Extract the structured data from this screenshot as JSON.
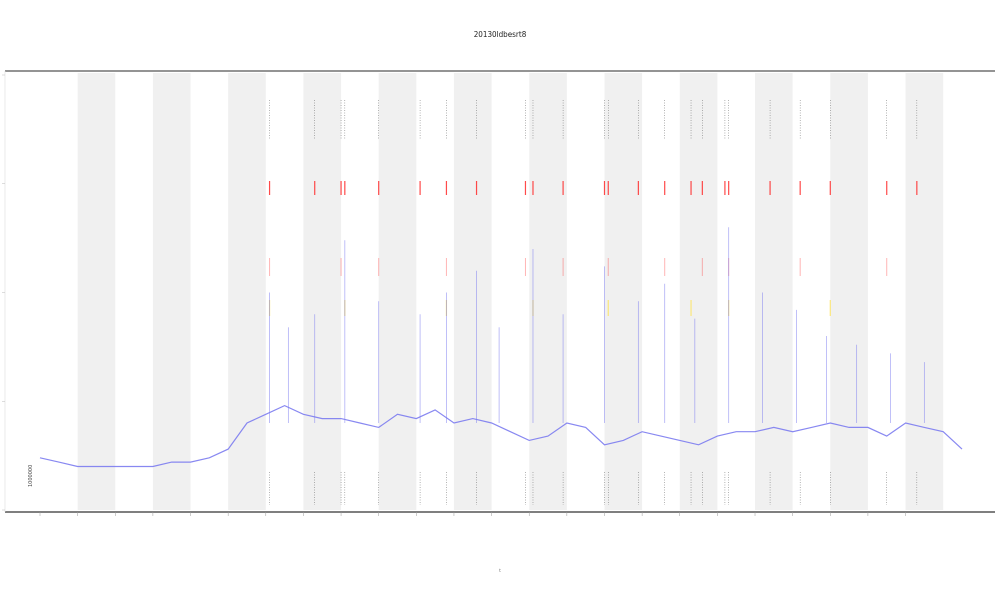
{
  "chart_data": {
    "type": "line",
    "title": "20130ldbesrt8",
    "corner_label": "1000000",
    "xlabel": "t",
    "ylabel": "",
    "x_ticks": [
      "",
      "",
      "",
      "",
      "",
      "",
      "",
      "",
      "",
      "",
      "",
      "",
      "",
      "",
      "",
      "",
      "",
      "",
      "",
      "",
      "",
      "",
      "",
      ""
    ],
    "y_ticks": [
      "",
      "",
      "",
      "",
      ""
    ],
    "grid": false,
    "legend": "none",
    "colors": {
      "signal": "#7b7bf0",
      "shade": "#f0f0f0",
      "event_red": "#ff2a2a",
      "event_yellow": "#ffe24a",
      "marker": "#444444",
      "axis": "#555555"
    },
    "shaded_bands": [
      [
        1,
        2
      ],
      [
        3,
        4
      ],
      [
        5,
        6
      ],
      [
        7,
        8
      ],
      [
        9,
        10
      ],
      [
        11,
        12
      ],
      [
        13,
        14
      ],
      [
        15,
        16
      ],
      [
        17,
        18
      ],
      [
        19,
        20
      ],
      [
        21,
        22
      ],
      [
        23,
        24
      ]
    ],
    "series": [
      {
        "x": [
          0,
          0.5,
          1,
          1.5,
          2,
          2.5,
          3,
          3.5,
          4,
          4.5,
          5,
          5.5,
          6,
          6.5,
          7,
          7.5,
          8,
          8.5,
          9,
          9.5,
          10,
          10.5,
          11,
          11.5,
          12,
          12.5,
          13,
          13.5,
          14,
          14.5,
          15,
          15.5,
          16,
          16.5,
          17,
          17.5,
          18,
          18.5,
          19,
          19.5,
          20,
          20.5,
          21,
          21.5,
          22,
          22.5,
          23,
          23.5,
          24,
          24.5
        ],
        "values": [
          0.12,
          0.11,
          0.1,
          0.1,
          0.1,
          0.1,
          0.1,
          0.11,
          0.11,
          0.12,
          0.14,
          0.2,
          0.22,
          0.24,
          0.22,
          0.21,
          0.21,
          0.2,
          0.19,
          0.22,
          0.21,
          0.23,
          0.2,
          0.21,
          0.2,
          0.18,
          0.16,
          0.17,
          0.2,
          0.19,
          0.15,
          0.16,
          0.18,
          0.17,
          0.16,
          0.15,
          0.17,
          0.18,
          0.18,
          0.19,
          0.18,
          0.19,
          0.2,
          0.19,
          0.19,
          0.17,
          0.2,
          0.19,
          0.18,
          0.14
        ]
      }
    ],
    "spikes": [
      [
        6.1,
        0.5
      ],
      [
        6.6,
        0.42
      ],
      [
        7.3,
        0.45
      ],
      [
        8.1,
        0.62
      ],
      [
        9.0,
        0.48
      ],
      [
        10.1,
        0.45
      ],
      [
        10.8,
        0.5
      ],
      [
        11.6,
        0.55
      ],
      [
        12.2,
        0.42
      ],
      [
        13.1,
        0.6
      ],
      [
        13.9,
        0.45
      ],
      [
        15.0,
        0.56
      ],
      [
        15.9,
        0.48
      ],
      [
        16.6,
        0.52
      ],
      [
        17.4,
        0.44
      ],
      [
        18.3,
        0.65
      ],
      [
        19.2,
        0.5
      ],
      [
        20.1,
        0.46
      ],
      [
        20.9,
        0.4
      ],
      [
        21.7,
        0.38
      ],
      [
        22.6,
        0.36
      ],
      [
        23.5,
        0.34
      ]
    ],
    "event_x": [
      6.1,
      7.3,
      8.0,
      8.1,
      9.0,
      10.1,
      10.8,
      11.6,
      12.9,
      13.1,
      13.9,
      15.0,
      15.1,
      15.9,
      16.6,
      17.3,
      17.6,
      18.2,
      18.3,
      19.4,
      20.2,
      21.0,
      22.5,
      23.3
    ]
  }
}
